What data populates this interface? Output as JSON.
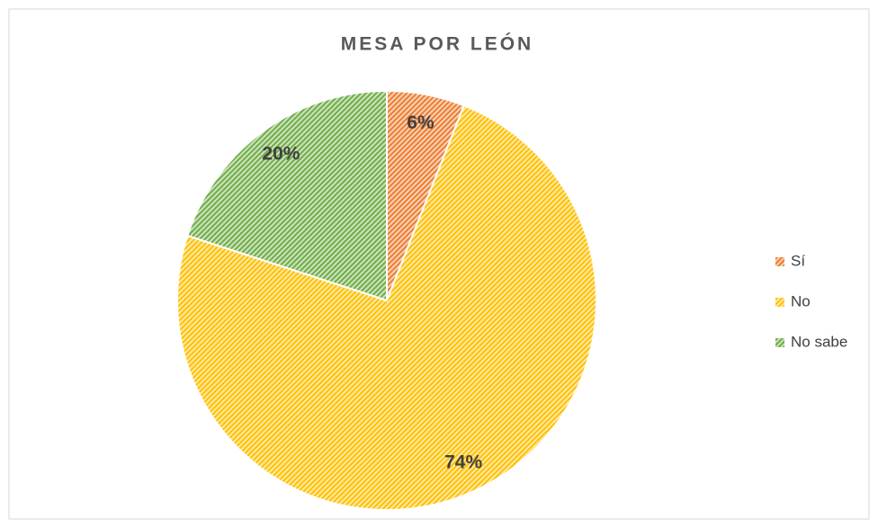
{
  "chart_data": {
    "type": "pie",
    "title": "MESA POR LEÓN",
    "categories": [
      "Sí",
      "No",
      "No sabe"
    ],
    "values": [
      6,
      74,
      20
    ],
    "value_labels": [
      "6%",
      "74%",
      "20%"
    ],
    "colors": [
      "#ed7d31",
      "#ffc000",
      "#70ad47"
    ],
    "legend": "right"
  }
}
